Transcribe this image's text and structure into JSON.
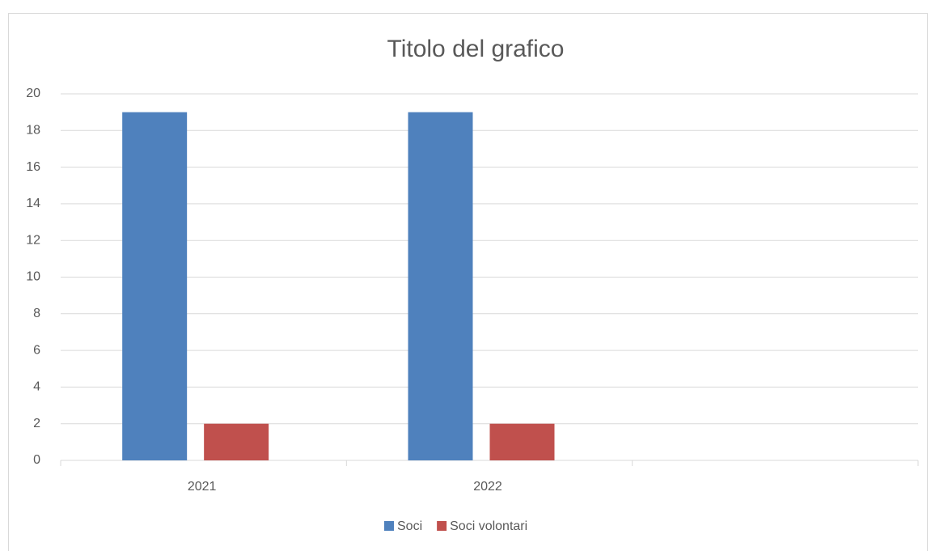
{
  "chart_data": {
    "type": "bar",
    "title": "Titolo del grafico",
    "categories": [
      "2021",
      "2022",
      null
    ],
    "series": [
      {
        "name": "Soci",
        "color": "#4f81bd",
        "values": [
          19,
          19,
          null
        ]
      },
      {
        "name": "Soci volontari",
        "color": "#c0504d",
        "values": [
          2,
          2,
          null
        ]
      }
    ],
    "ylim": [
      0,
      20
    ],
    "yticks": [
      0,
      2,
      4,
      6,
      8,
      10,
      12,
      14,
      16,
      18,
      20
    ],
    "grid": true,
    "legend": "bottom"
  }
}
